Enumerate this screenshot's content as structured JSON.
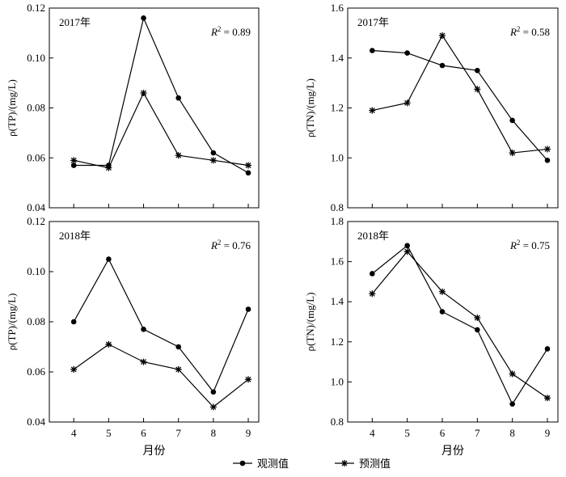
{
  "chart_data": [
    {
      "type": "line",
      "title": "2017年",
      "annotation": {
        "r2_prefix": "R",
        "r2_sup": "2",
        "r2_value": " = 0.89"
      },
      "ylabel": "ρ(TP)/(mg/L)",
      "xlabel": "",
      "x": [
        4,
        5,
        6,
        7,
        8,
        9
      ],
      "ylim": [
        0.04,
        0.12
      ],
      "yticks": [
        "0.04",
        "0.06",
        "0.08",
        "0.10",
        "0.12"
      ],
      "xticks": [
        "",
        "",
        "",
        "",
        "",
        ""
      ],
      "series": [
        {
          "name": "观测值",
          "marker": "dot",
          "values": [
            0.057,
            0.057,
            0.116,
            0.084,
            0.062,
            0.054
          ]
        },
        {
          "name": "预测值",
          "marker": "star",
          "values": [
            0.059,
            0.056,
            0.086,
            0.061,
            0.059,
            0.057
          ]
        }
      ]
    },
    {
      "type": "line",
      "title": "2017年",
      "annotation": {
        "r2_prefix": "R",
        "r2_sup": "2",
        "r2_value": " = 0.58"
      },
      "ylabel": "ρ(TN)/(mg/L)",
      "xlabel": "",
      "x": [
        4,
        5,
        6,
        7,
        8,
        9
      ],
      "ylim": [
        0.8,
        1.6
      ],
      "yticks": [
        "0.8",
        "1.0",
        "1.2",
        "1.4",
        "1.6"
      ],
      "xticks": [
        "",
        "",
        "",
        "",
        "",
        ""
      ],
      "series": [
        {
          "name": "观测值",
          "marker": "dot",
          "values": [
            1.43,
            1.42,
            1.37,
            1.35,
            1.15,
            0.99
          ]
        },
        {
          "name": "预测值",
          "marker": "star",
          "values": [
            1.19,
            1.22,
            1.49,
            1.275,
            1.02,
            1.035
          ]
        }
      ]
    },
    {
      "type": "line",
      "title": "2018年",
      "annotation": {
        "r2_prefix": "R",
        "r2_sup": "2",
        "r2_value": " = 0.76"
      },
      "ylabel": "ρ(TP)/(mg/L)",
      "xlabel": "月份",
      "x": [
        4,
        5,
        6,
        7,
        8,
        9
      ],
      "ylim": [
        0.04,
        0.12
      ],
      "yticks": [
        "0.04",
        "0.06",
        "0.08",
        "0.10",
        "0.12"
      ],
      "xticks": [
        "4",
        "5",
        "6",
        "7",
        "8",
        "9"
      ],
      "series": [
        {
          "name": "观测值",
          "marker": "dot",
          "values": [
            0.08,
            0.105,
            0.077,
            0.07,
            0.052,
            0.085
          ]
        },
        {
          "name": "预测值",
          "marker": "star",
          "values": [
            0.061,
            0.071,
            0.064,
            0.061,
            0.046,
            0.057
          ]
        }
      ]
    },
    {
      "type": "line",
      "title": "2018年",
      "annotation": {
        "r2_prefix": "R",
        "r2_sup": "2",
        "r2_value": " = 0.75"
      },
      "ylabel": "ρ(TN)/(mg/L)",
      "xlabel": "月份",
      "x": [
        4,
        5,
        6,
        7,
        8,
        9
      ],
      "ylim": [
        0.8,
        1.8
      ],
      "yticks": [
        "0.8",
        "1.0",
        "1.2",
        "1.4",
        "1.6",
        "1.8"
      ],
      "xticks": [
        "4",
        "5",
        "6",
        "7",
        "8",
        "9"
      ],
      "series": [
        {
          "name": "观测值",
          "marker": "dot",
          "values": [
            1.54,
            1.68,
            1.35,
            1.26,
            0.89,
            1.165
          ]
        },
        {
          "name": "预测值",
          "marker": "star",
          "values": [
            1.44,
            1.65,
            1.45,
            1.32,
            1.04,
            0.92
          ]
        }
      ]
    }
  ],
  "legend": {
    "items": [
      {
        "label": "观测值",
        "marker": "dot"
      },
      {
        "label": "预测值",
        "marker": "star"
      }
    ],
    "placement": "bottom-center"
  }
}
